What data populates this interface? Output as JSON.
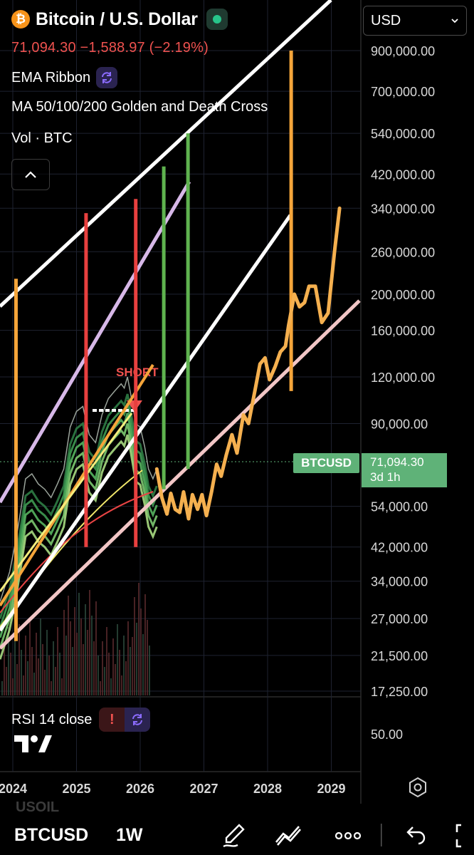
{
  "header": {
    "title": "Bitcoin / U.S. Dollar",
    "coin_glyph": "₿",
    "price_change": "71,094.30 −1,588.97 (−2.19%)",
    "indicators": [
      "EMA Ribbon",
      "MA 50/100/200 Golden and Death Cross",
      "Vol · BTC"
    ],
    "currency": "USD"
  },
  "price_label": {
    "symbol": "BTCUSD",
    "value": "71,094.30",
    "countdown": "3d 1h"
  },
  "annotation": "SHORT",
  "rsi": {
    "label": "RSI 14 close",
    "warn": "!",
    "value_label": "50.00"
  },
  "bottom_bar": {
    "symbol": "BTCUSD",
    "interval": "1W",
    "ghost_symbol": "USOIL"
  },
  "colors": {
    "bg": "#000000",
    "up": "#5fb278",
    "down": "#f0524f",
    "projection": "#f5b04f"
  },
  "chart_data": {
    "type": "line",
    "y_scale": "log",
    "ylim": [
      17250,
      900000
    ],
    "xlim": [
      "2023-10",
      "2029-06"
    ],
    "y_ticks": [
      {
        "label": "900,000.00",
        "value": 900000
      },
      {
        "label": "700,000.00",
        "value": 700000
      },
      {
        "label": "540,000.00",
        "value": 540000
      },
      {
        "label": "420,000.00",
        "value": 420000
      },
      {
        "label": "340,000.00",
        "value": 340000
      },
      {
        "label": "260,000.00",
        "value": 260000
      },
      {
        "label": "200,000.00",
        "value": 200000
      },
      {
        "label": "160,000.00",
        "value": 160000
      },
      {
        "label": "120,000.00",
        "value": 120000
      },
      {
        "label": "90,000.00",
        "value": 90000
      },
      {
        "label": "54,000.00",
        "value": 54000
      },
      {
        "label": "42,000.00",
        "value": 42000
      },
      {
        "label": "34,000.00",
        "value": 34000
      },
      {
        "label": "27,000.00",
        "value": 27000
      },
      {
        "label": "21,500.00",
        "value": 21500
      },
      {
        "label": "17,250.00",
        "value": 17250
      }
    ],
    "x_ticks": [
      {
        "label": "2024",
        "value": 2024.0
      },
      {
        "label": "2025",
        "value": 2025.0
      },
      {
        "label": "2026",
        "value": 2026.0
      },
      {
        "label": "2027",
        "value": 2027.0
      },
      {
        "label": "2028",
        "value": 2028.0
      },
      {
        "label": "2029",
        "value": 2029.0
      }
    ],
    "series": [
      {
        "color": "#f5b04f",
        "points": [
          [
            2026.26,
            68000
          ],
          [
            2026.34,
            57000
          ],
          [
            2026.42,
            51500
          ],
          [
            2026.48,
            58500
          ],
          [
            2026.55,
            53000
          ],
          [
            2026.62,
            52000
          ],
          [
            2026.68,
            59000
          ],
          [
            2026.76,
            50000
          ],
          [
            2026.82,
            58000
          ],
          [
            2026.9,
            53000
          ],
          [
            2026.97,
            58000
          ],
          [
            2027.04,
            51000
          ],
          [
            2027.12,
            59000
          ],
          [
            2027.2,
            70000
          ],
          [
            2027.27,
            65000
          ],
          [
            2027.35,
            74000
          ],
          [
            2027.44,
            84000
          ],
          [
            2027.52,
            75000
          ],
          [
            2027.62,
            95000
          ],
          [
            2027.7,
            90000
          ],
          [
            2027.8,
            110000
          ],
          [
            2027.88,
            130000
          ],
          [
            2027.96,
            135000
          ],
          [
            2028.03,
            118000
          ],
          [
            2028.12,
            128000
          ],
          [
            2028.2,
            140000
          ],
          [
            2028.28,
            145000
          ],
          [
            2028.33,
            165000
          ],
          [
            2028.42,
            200000
          ],
          [
            2028.5,
            185000
          ],
          [
            2028.58,
            190000
          ],
          [
            2028.65,
            210000
          ],
          [
            2028.75,
            210000
          ],
          [
            2028.85,
            168000
          ],
          [
            2028.95,
            178000
          ],
          [
            2029.05,
            260000
          ],
          [
            2029.13,
            340000
          ]
        ]
      }
    ],
    "vertical_lines": [
      {
        "x": 2024.05,
        "color": "#f5a53a",
        "from": 23500,
        "to": 220000
      },
      {
        "x": 2025.15,
        "color": "#e8403f",
        "from": 42000,
        "to": 330000
      },
      {
        "x": 2025.93,
        "color": "#e8403f",
        "from": 42000,
        "to": 360000
      },
      {
        "x": 2026.37,
        "color": "#5fb34f",
        "from": 60000,
        "to": 440000
      },
      {
        "x": 2026.75,
        "color": "#5fb34f",
        "from": 68000,
        "to": 540000
      },
      {
        "x": 2028.37,
        "color": "#f5a53a",
        "from": 110000,
        "to": 900000
      }
    ]
  }
}
